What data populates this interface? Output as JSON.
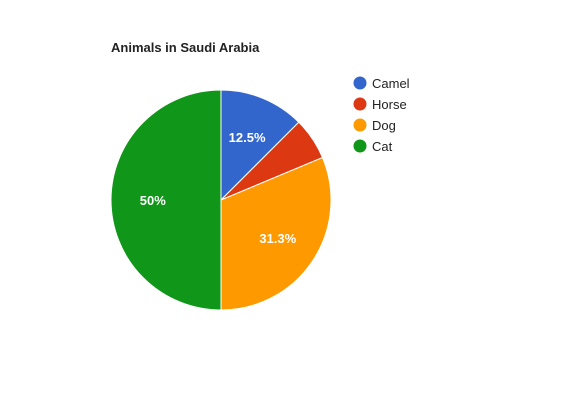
{
  "chart_data": {
    "type": "pie",
    "title": "Animals in Saudi Arabia",
    "legend_position": "right",
    "slices": [
      {
        "label": "Camel",
        "value": 12.5,
        "display": "12.5%",
        "color": "#3366cc"
      },
      {
        "label": "Horse",
        "value": 6.2,
        "display": "",
        "color": "#dc3912"
      },
      {
        "label": "Dog",
        "value": 31.3,
        "display": "31.3%",
        "color": "#ff9900"
      },
      {
        "label": "Cat",
        "value": 50,
        "display": "50%",
        "color": "#109618"
      }
    ]
  }
}
